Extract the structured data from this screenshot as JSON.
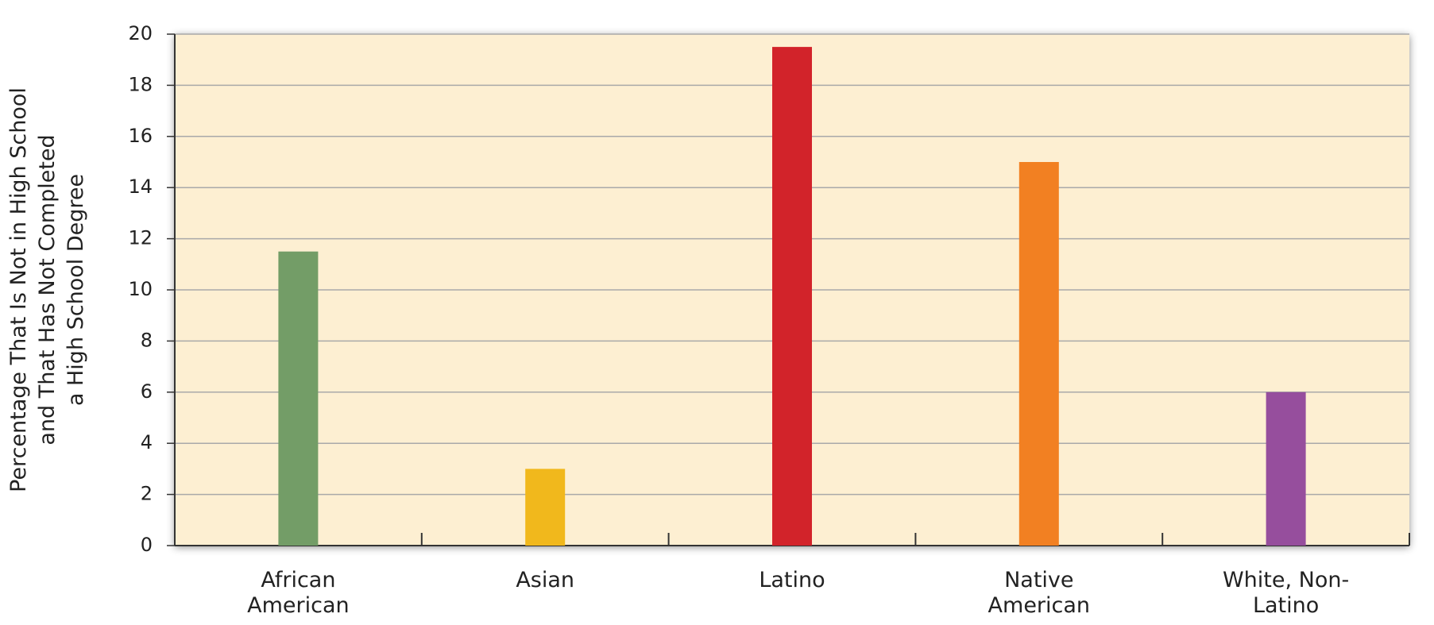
{
  "chart_data": {
    "type": "bar",
    "ylabel": [
      "Percentage That Is Not in High School",
      "and That Has Not Completed",
      "a High School Degree"
    ],
    "categories": [
      "African American",
      "Asian",
      "Latino",
      "Native American",
      "White, Non-Latino"
    ],
    "values": [
      11.5,
      3,
      19.5,
      15,
      6
    ],
    "colors": [
      "#739d67",
      "#f1b81c",
      "#d2232a",
      "#f28022",
      "#964e9d"
    ],
    "ylim": [
      0,
      20
    ],
    "yticks": [
      0,
      2,
      4,
      6,
      8,
      10,
      12,
      14,
      16,
      18,
      20
    ],
    "grid": true
  }
}
